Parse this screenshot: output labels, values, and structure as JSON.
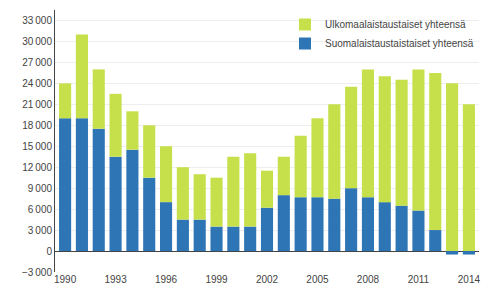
{
  "chart_data": {
    "type": "bar",
    "stacked": true,
    "categories": [
      "1990",
      null,
      null,
      "1993",
      null,
      null,
      "1996",
      null,
      null,
      "1999",
      null,
      null,
      "2002",
      null,
      null,
      "2005",
      null,
      null,
      "2008",
      null,
      null,
      "2011",
      null,
      null,
      "2014"
    ],
    "series": [
      {
        "name": "Suomalaistaustaistaiset yhteensä",
        "color": "#2e75b6",
        "values": [
          19000,
          19000,
          17500,
          13500,
          14500,
          10500,
          7000,
          4500,
          4500,
          3500,
          3500,
          3500,
          6200,
          8000,
          7700,
          7700,
          7500,
          9000,
          7700,
          7000,
          6500,
          5800,
          3000,
          -500,
          -500
        ]
      },
      {
        "name": "Ulkomaalaistaustaiset yhteensä",
        "color": "#c5e04b",
        "values": [
          5000,
          12000,
          8500,
          9000,
          5500,
          7500,
          8000,
          7500,
          6500,
          7000,
          10000,
          10500,
          5300,
          5500,
          8800,
          11300,
          13500,
          14500,
          18300,
          18000,
          18000,
          20200,
          22500,
          24000,
          21000
        ]
      }
    ],
    "ylim": [
      -3000,
      34500
    ],
    "yticks": [
      {
        "value": -3000,
        "label": "−3 000"
      },
      0,
      {
        "value": 3000,
        "label": "3 000"
      },
      {
        "value": 6000,
        "label": "6 000"
      },
      {
        "value": 9000,
        "label": "9 000"
      },
      {
        "value": 12000,
        "label": "12 000"
      },
      {
        "value": 15000,
        "label": "15 000"
      },
      {
        "value": 18000,
        "label": "18 000"
      },
      {
        "value": 21000,
        "label": "21 000"
      },
      {
        "value": 24000,
        "label": "24 000"
      },
      {
        "value": 27000,
        "label": "27 000"
      },
      {
        "value": 30000,
        "label": "30 000"
      },
      {
        "value": 33000,
        "label": "33 000"
      }
    ],
    "grid": true,
    "legend": "upper right"
  }
}
